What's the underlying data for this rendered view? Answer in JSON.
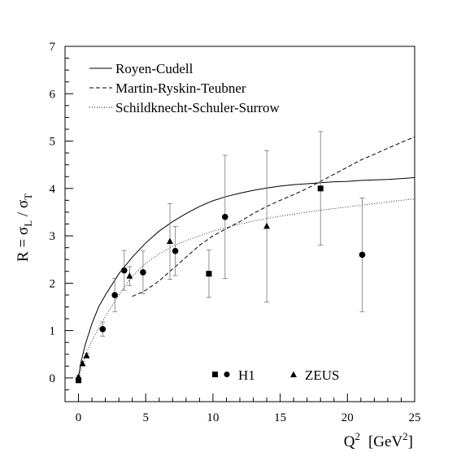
{
  "chart_data": {
    "type": "scatter",
    "xlim": [
      -1,
      25
    ],
    "ylim": [
      -0.5,
      7
    ],
    "x_ticks": [
      0,
      5,
      10,
      15,
      20,
      25
    ],
    "y_ticks": [
      0,
      1,
      2,
      3,
      4,
      5,
      6,
      7
    ],
    "x_tick_labels": [
      "0",
      "5",
      "10",
      "15",
      "20",
      "25"
    ],
    "y_tick_labels": [
      "0",
      "1",
      "2",
      "3",
      "4",
      "5",
      "6",
      "7"
    ],
    "xlabel": {
      "main": "Q",
      "sup": "2",
      "unit_open": "[GeV",
      "unit_sup": "2",
      "unit_close": "]"
    },
    "ylabel": {
      "prefix": "R = σ",
      "sub1": "L",
      "mid": " / σ",
      "sub2": "T"
    },
    "grid": false,
    "legend_curves": [
      {
        "label": "Royen-Cudell",
        "style": "solid"
      },
      {
        "label": "Martin-Ryskin-Teubner",
        "style": "dashed"
      },
      {
        "label": "Schildknecht-Schuler-Surrow",
        "style": "dotted"
      }
    ],
    "legend_points": [
      {
        "label": "H1",
        "markers": [
          "square",
          "circle"
        ]
      },
      {
        "label": "ZEUS",
        "markers": [
          "triangle"
        ]
      }
    ],
    "curves": [
      {
        "label": "Royen-Cudell",
        "style": "solid",
        "x": [
          0,
          0.2,
          0.5,
          1,
          1.5,
          2,
          3,
          4,
          5,
          6,
          7,
          8,
          9,
          10,
          11,
          12,
          13,
          14,
          15,
          16,
          17,
          18,
          19,
          20,
          21,
          22,
          23,
          24,
          25
        ],
        "y": [
          0.02,
          0.35,
          0.7,
          1.15,
          1.5,
          1.75,
          2.2,
          2.55,
          2.85,
          3.1,
          3.3,
          3.47,
          3.62,
          3.74,
          3.83,
          3.9,
          3.96,
          4.01,
          4.05,
          4.08,
          4.1,
          4.12,
          4.14,
          4.15,
          4.17,
          4.18,
          4.19,
          4.21,
          4.23
        ]
      },
      {
        "label": "Martin-Ryskin-Teubner",
        "style": "dashed",
        "x": [
          4,
          5,
          6,
          7,
          8,
          9,
          10,
          11,
          12,
          13,
          14,
          15,
          16,
          17,
          18,
          19,
          20,
          21,
          22,
          23,
          24,
          25
        ],
        "y": [
          1.72,
          1.85,
          2.05,
          2.3,
          2.55,
          2.8,
          3.0,
          3.15,
          3.3,
          3.47,
          3.62,
          3.75,
          3.87,
          4.0,
          4.15,
          4.3,
          4.45,
          4.6,
          4.72,
          4.85,
          4.97,
          5.09
        ]
      },
      {
        "label": "Schildknecht-Schuler-Surrow",
        "style": "dotted",
        "x": [
          0,
          0.3,
          0.7,
          1.2,
          2,
          3,
          4,
          5,
          6,
          7,
          8,
          9,
          10,
          12,
          14,
          16,
          18,
          20,
          22,
          24,
          25
        ],
        "y": [
          0.0,
          0.3,
          0.6,
          0.9,
          1.3,
          1.75,
          2.15,
          2.42,
          2.62,
          2.78,
          2.9,
          3.0,
          3.1,
          3.25,
          3.37,
          3.46,
          3.54,
          3.61,
          3.68,
          3.75,
          3.78
        ]
      }
    ],
    "series": [
      {
        "name": "H1",
        "marker": "square",
        "points": [
          {
            "x": 0.0,
            "y": -0.05,
            "err": 0.03
          },
          {
            "x": 9.7,
            "y": 2.2,
            "err": 0.5
          },
          {
            "x": 18.0,
            "y": 4.0,
            "err": 1.2
          }
        ]
      },
      {
        "name": "H1",
        "marker": "circle",
        "points": [
          {
            "x": 1.8,
            "y": 1.03,
            "err": 0.15
          },
          {
            "x": 2.7,
            "y": 1.75,
            "err": 0.35
          },
          {
            "x": 3.4,
            "y": 2.27,
            "err": 0.42
          },
          {
            "x": 4.8,
            "y": 2.23,
            "err": 0.45
          },
          {
            "x": 7.2,
            "y": 2.68,
            "err": 0.52
          },
          {
            "x": 10.9,
            "y": 3.4,
            "err": 1.3
          },
          {
            "x": 21.1,
            "y": 2.6,
            "err": 1.2
          }
        ]
      },
      {
        "name": "ZEUS",
        "marker": "triangle",
        "points": [
          {
            "x": 0.0,
            "y": 0.02,
            "err": 0.03
          },
          {
            "x": 0.3,
            "y": 0.3,
            "err": 0.05
          },
          {
            "x": 0.6,
            "y": 0.47,
            "err": 0.05
          },
          {
            "x": 3.8,
            "y": 2.15,
            "err": 0.2
          },
          {
            "x": 6.8,
            "y": 2.88,
            "err": 0.8
          },
          {
            "x": 14.0,
            "y": 3.2,
            "err": 1.6
          }
        ]
      }
    ]
  }
}
